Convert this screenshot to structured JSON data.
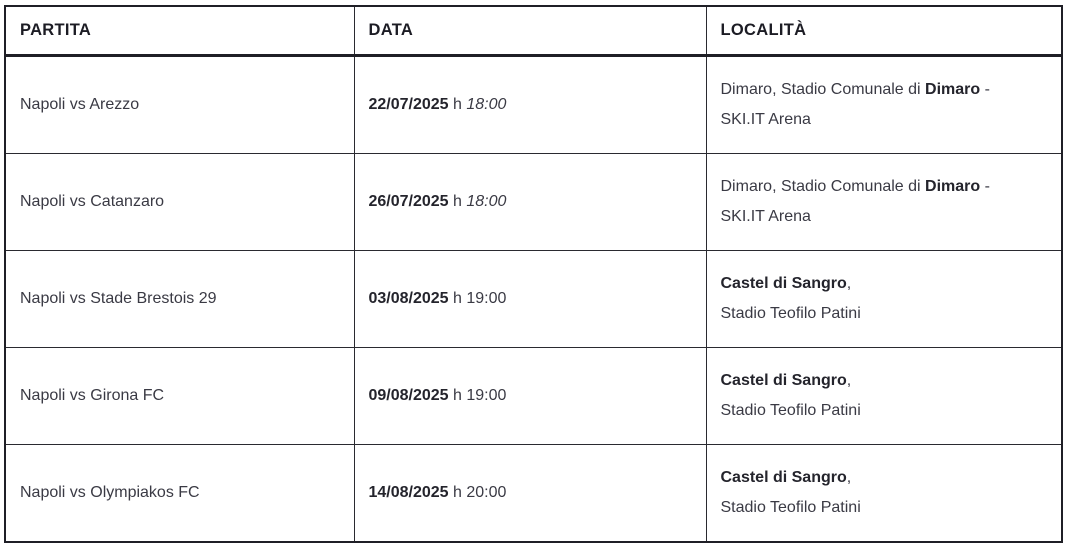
{
  "accent_colors": {
    "border_dark": "#1f1f26",
    "text_body": "#3a3a44",
    "text_strong": "#1c1c24",
    "background": "#ffffff"
  },
  "table": {
    "columns": [
      {
        "key": "partita",
        "label": "PARTITA"
      },
      {
        "key": "data",
        "label": "DATA"
      },
      {
        "key": "localita",
        "label": "LOCALITÀ"
      }
    ],
    "rows": [
      {
        "partita": "Napoli vs Arezzo",
        "data_segments": [
          {
            "text": "22/07/2025",
            "bold": true
          },
          {
            "text": " h ",
            "bold": false
          },
          {
            "text": "18:00",
            "italic": true
          }
        ],
        "localita_lines": [
          [
            {
              "text": "Dimaro, Stadio Comunale di ",
              "bold": false
            },
            {
              "text": "Dimaro",
              "bold": true
            },
            {
              "text": " -",
              "bold": false
            }
          ],
          [
            {
              "text": "SKI.IT Arena",
              "bold": false
            }
          ]
        ]
      },
      {
        "partita": "Napoli vs Catanzaro",
        "data_segments": [
          {
            "text": "26/07/2025",
            "bold": true
          },
          {
            "text": " h ",
            "bold": false
          },
          {
            "text": "18:00",
            "italic": true
          }
        ],
        "localita_lines": [
          [
            {
              "text": "Dimaro, Stadio Comunale di ",
              "bold": false
            },
            {
              "text": "Dimaro",
              "bold": true
            },
            {
              "text": " -",
              "bold": false
            }
          ],
          [
            {
              "text": "SKI.IT Arena",
              "bold": false
            }
          ]
        ]
      },
      {
        "partita": "Napoli vs Stade Brestois 29",
        "data_segments": [
          {
            "text": "03/08/2025",
            "bold": true
          },
          {
            "text": " h 19:00",
            "bold": false
          }
        ],
        "localita_lines": [
          [
            {
              "text": "Castel di Sangro",
              "bold": true
            },
            {
              "text": ",",
              "bold": false
            }
          ],
          [
            {
              "text": "Stadio Teofilo Patini",
              "bold": false
            }
          ]
        ]
      },
      {
        "partita": "Napoli vs Girona FC",
        "data_segments": [
          {
            "text": "09/08/2025",
            "bold": true
          },
          {
            "text": " h 19:00",
            "bold": false
          }
        ],
        "localita_lines": [
          [
            {
              "text": "Castel di Sangro",
              "bold": true
            },
            {
              "text": ",",
              "bold": false
            }
          ],
          [
            {
              "text": "Stadio Teofilo Patini",
              "bold": false
            }
          ]
        ]
      },
      {
        "partita": "Napoli vs Olympiakos FC",
        "data_segments": [
          {
            "text": "14/08/2025",
            "bold": true
          },
          {
            "text": " h 20:00",
            "bold": false
          }
        ],
        "localita_lines": [
          [
            {
              "text": "Castel di Sangro",
              "bold": true
            },
            {
              "text": ",",
              "bold": false
            }
          ],
          [
            {
              "text": "Stadio Teofilo Patini",
              "bold": false
            }
          ]
        ]
      }
    ]
  }
}
